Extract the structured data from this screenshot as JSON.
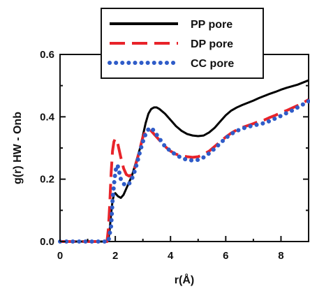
{
  "chart_data": {
    "type": "line",
    "xlabel": "r(Å)",
    "ylabel": "g(r) HW - Onb",
    "xlim": [
      0,
      9
    ],
    "ylim": [
      0,
      0.6
    ],
    "xticks": [
      0,
      2,
      4,
      6,
      8
    ],
    "yticks": [
      0.0,
      0.2,
      0.4,
      0.6
    ],
    "xtick_labels": [
      "0",
      "2",
      "4",
      "6",
      "8"
    ],
    "ytick_labels": [
      "0.0",
      "0.2",
      "0.4",
      "0.6"
    ],
    "grid": false,
    "legend_position": "top-center",
    "series": [
      {
        "name": "PP pore",
        "color": "#000000",
        "style": "solid",
        "points": [
          [
            0,
            0
          ],
          [
            1.5,
            0
          ],
          [
            1.7,
            0
          ],
          [
            1.75,
            0.005
          ],
          [
            1.8,
            0.04
          ],
          [
            1.85,
            0.09
          ],
          [
            1.9,
            0.13
          ],
          [
            1.95,
            0.15
          ],
          [
            2.0,
            0.155
          ],
          [
            2.05,
            0.15
          ],
          [
            2.1,
            0.145
          ],
          [
            2.2,
            0.14
          ],
          [
            2.3,
            0.15
          ],
          [
            2.4,
            0.17
          ],
          [
            2.5,
            0.19
          ],
          [
            2.6,
            0.21
          ],
          [
            2.7,
            0.24
          ],
          [
            2.8,
            0.27
          ],
          [
            2.9,
            0.3
          ],
          [
            3.0,
            0.34
          ],
          [
            3.1,
            0.38
          ],
          [
            3.2,
            0.41
          ],
          [
            3.3,
            0.425
          ],
          [
            3.4,
            0.43
          ],
          [
            3.5,
            0.43
          ],
          [
            3.6,
            0.425
          ],
          [
            3.8,
            0.41
          ],
          [
            4.0,
            0.39
          ],
          [
            4.2,
            0.37
          ],
          [
            4.4,
            0.355
          ],
          [
            4.6,
            0.345
          ],
          [
            4.8,
            0.34
          ],
          [
            5.0,
            0.338
          ],
          [
            5.2,
            0.34
          ],
          [
            5.4,
            0.35
          ],
          [
            5.6,
            0.365
          ],
          [
            5.8,
            0.385
          ],
          [
            6.0,
            0.405
          ],
          [
            6.2,
            0.42
          ],
          [
            6.4,
            0.43
          ],
          [
            6.6,
            0.438
          ],
          [
            6.8,
            0.445
          ],
          [
            7.0,
            0.452
          ],
          [
            7.2,
            0.46
          ],
          [
            7.4,
            0.467
          ],
          [
            7.6,
            0.474
          ],
          [
            7.8,
            0.48
          ],
          [
            8.0,
            0.487
          ],
          [
            8.2,
            0.493
          ],
          [
            8.4,
            0.498
          ],
          [
            8.6,
            0.503
          ],
          [
            8.8,
            0.51
          ],
          [
            9.0,
            0.517
          ]
        ]
      },
      {
        "name": "DP pore",
        "color": "#e8232a",
        "style": "dashed",
        "points": [
          [
            0,
            0
          ],
          [
            1.5,
            0
          ],
          [
            1.7,
            0
          ],
          [
            1.75,
            0.04
          ],
          [
            1.8,
            0.12
          ],
          [
            1.85,
            0.22
          ],
          [
            1.9,
            0.29
          ],
          [
            1.95,
            0.32
          ],
          [
            2.0,
            0.33
          ],
          [
            2.05,
            0.325
          ],
          [
            2.1,
            0.31
          ],
          [
            2.2,
            0.27
          ],
          [
            2.3,
            0.235
          ],
          [
            2.4,
            0.215
          ],
          [
            2.5,
            0.21
          ],
          [
            2.6,
            0.215
          ],
          [
            2.7,
            0.235
          ],
          [
            2.8,
            0.265
          ],
          [
            2.9,
            0.3
          ],
          [
            3.0,
            0.335
          ],
          [
            3.1,
            0.355
          ],
          [
            3.2,
            0.36
          ],
          [
            3.3,
            0.355
          ],
          [
            3.4,
            0.345
          ],
          [
            3.6,
            0.325
          ],
          [
            3.8,
            0.305
          ],
          [
            4.0,
            0.29
          ],
          [
            4.2,
            0.28
          ],
          [
            4.4,
            0.275
          ],
          [
            4.6,
            0.272
          ],
          [
            4.8,
            0.27
          ],
          [
            5.0,
            0.272
          ],
          [
            5.2,
            0.28
          ],
          [
            5.4,
            0.29
          ],
          [
            5.6,
            0.305
          ],
          [
            5.8,
            0.32
          ],
          [
            6.0,
            0.335
          ],
          [
            6.2,
            0.348
          ],
          [
            6.4,
            0.358
          ],
          [
            6.6,
            0.366
          ],
          [
            6.8,
            0.372
          ],
          [
            7.0,
            0.378
          ],
          [
            7.2,
            0.385
          ],
          [
            7.4,
            0.39
          ],
          [
            7.6,
            0.398
          ],
          [
            7.8,
            0.405
          ],
          [
            8.0,
            0.413
          ],
          [
            8.2,
            0.42
          ],
          [
            8.4,
            0.428
          ],
          [
            8.6,
            0.436
          ],
          [
            8.8,
            0.445
          ],
          [
            9.0,
            0.455
          ]
        ]
      },
      {
        "name": "CC pore",
        "color": "#2f5cc8",
        "style": "dotted",
        "points": [
          [
            0,
            0
          ],
          [
            1.75,
            0
          ],
          [
            1.85,
            0.05
          ],
          [
            1.9,
            0.13
          ],
          [
            1.95,
            0.18
          ],
          [
            2.0,
            0.22
          ],
          [
            2.05,
            0.245
          ],
          [
            2.1,
            0.24
          ],
          [
            2.15,
            0.22
          ],
          [
            2.2,
            0.2
          ],
          [
            2.3,
            0.185
          ],
          [
            2.4,
            0.18
          ],
          [
            2.5,
            0.185
          ],
          [
            2.6,
            0.2
          ],
          [
            2.7,
            0.225
          ],
          [
            2.8,
            0.255
          ],
          [
            2.9,
            0.29
          ],
          [
            3.0,
            0.32
          ],
          [
            3.1,
            0.345
          ],
          [
            3.2,
            0.36
          ],
          [
            3.3,
            0.365
          ],
          [
            3.4,
            0.355
          ],
          [
            3.6,
            0.33
          ],
          [
            3.8,
            0.305
          ],
          [
            4.0,
            0.29
          ],
          [
            4.2,
            0.278
          ],
          [
            4.4,
            0.268
          ],
          [
            4.6,
            0.262
          ],
          [
            4.8,
            0.26
          ],
          [
            5.0,
            0.262
          ],
          [
            5.2,
            0.27
          ],
          [
            5.4,
            0.283
          ],
          [
            5.6,
            0.298
          ],
          [
            5.8,
            0.315
          ],
          [
            6.0,
            0.332
          ],
          [
            6.2,
            0.345
          ],
          [
            6.4,
            0.355
          ],
          [
            6.6,
            0.362
          ],
          [
            6.8,
            0.368
          ],
          [
            7.0,
            0.372
          ],
          [
            7.2,
            0.376
          ],
          [
            7.4,
            0.38
          ],
          [
            7.6,
            0.387
          ],
          [
            7.8,
            0.395
          ],
          [
            8.0,
            0.403
          ],
          [
            8.2,
            0.412
          ],
          [
            8.4,
            0.42
          ],
          [
            8.6,
            0.43
          ],
          [
            8.8,
            0.44
          ],
          [
            9.0,
            0.45
          ]
        ]
      }
    ]
  }
}
